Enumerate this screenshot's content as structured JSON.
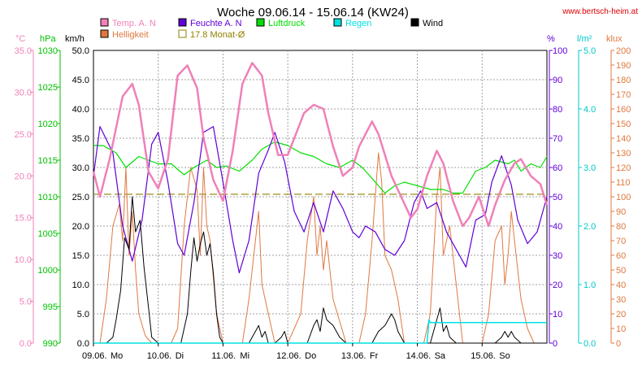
{
  "chart_data": {
    "type": "line",
    "title": "Woche 09.06.14 - 15.06.14 (KW24)",
    "source_label": "www.bertsch-heim.at",
    "x_ticks": [
      "09.06.",
      "Mo",
      "10.06.",
      "Di",
      "11.06.",
      "Mi",
      "12.06.",
      "Do",
      "13.06.",
      "Fr",
      "14.06.",
      "Sa",
      "15.06.",
      "So"
    ],
    "day_ticks": [
      {
        "date": "09.06.",
        "day": "Mo"
      },
      {
        "date": "10.06.",
        "day": "Di"
      },
      {
        "date": "11.06.",
        "day": "Mi"
      },
      {
        "date": "12.06.",
        "day": "Do"
      },
      {
        "date": "13.06.",
        "day": "Fr"
      },
      {
        "date": "14.06.",
        "day": "Sa"
      },
      {
        "date": "15.06.",
        "day": "So"
      }
    ],
    "x_range_days": [
      0,
      7
    ],
    "grid": true,
    "legend": [
      {
        "label": "Temp. A. N",
        "color": "#f080b8"
      },
      {
        "label": "Feuchte A. N",
        "color": "#6000d8"
      },
      {
        "label": "Luftdruck",
        "color": "#00e000"
      },
      {
        "label": "Regen",
        "color": "#00e0e0"
      },
      {
        "label": "Wind",
        "color": "#000000"
      },
      {
        "label": "Helligkeit",
        "color": "#e07840"
      },
      {
        "label": "17.8 Monat-Ø",
        "color": "#908000"
      }
    ],
    "axes": {
      "temp": {
        "unit": "°C",
        "ticks": [
          "35.0",
          "30.0",
          "25.0",
          "20.0",
          "15.0",
          "10.0",
          "5.0",
          "0.0"
        ],
        "range": [
          0,
          35
        ],
        "color": "#f080b8"
      },
      "pressure": {
        "unit": "hPa",
        "ticks": [
          "1030",
          "1025",
          "1020",
          "1015",
          "1010",
          "1005",
          "1000",
          "995",
          "990"
        ],
        "range": [
          990,
          1030
        ],
        "color": "#00c000"
      },
      "wind": {
        "unit": "km/h",
        "ticks": [
          "50.0",
          "45.0",
          "40.0",
          "35.0",
          "30.0",
          "25.0",
          "20.0",
          "15.0",
          "10.0",
          "5.0",
          "0.0"
        ],
        "range": [
          0,
          50
        ],
        "color": "#000000"
      },
      "humidity": {
        "unit": "%",
        "ticks": [
          "100",
          "90",
          "80",
          "70",
          "60",
          "50",
          "40",
          "30",
          "20",
          "10",
          "0"
        ],
        "range": [
          0,
          100
        ],
        "color": "#6000d8"
      },
      "rain": {
        "unit": "l/m²",
        "ticks": [
          "5.0",
          "4.0",
          "3.0",
          "2.0",
          "1.0",
          "0.0"
        ],
        "range": [
          0,
          5
        ],
        "color": "#00c8c8"
      },
      "brightness": {
        "unit": "klux",
        "ticks": [
          "200",
          "190",
          "180",
          "170",
          "160",
          "150",
          "140",
          "130",
          "120",
          "110",
          "100",
          "90",
          "80",
          "70",
          "60",
          "50",
          "40",
          "30",
          "20",
          "10",
          "0"
        ],
        "range": [
          0,
          200
        ],
        "color": "#e07840"
      }
    },
    "monthly_avg_temp": 17.8,
    "series": [
      {
        "name": "Temp. A. N",
        "axis": "temp",
        "color": "#f080b8",
        "x": [
          0.0,
          0.1,
          0.25,
          0.45,
          0.6,
          0.7,
          0.85,
          1.0,
          1.15,
          1.3,
          1.45,
          1.6,
          1.7,
          1.85,
          2.0,
          2.15,
          2.3,
          2.45,
          2.6,
          2.7,
          2.85,
          3.0,
          3.15,
          3.25,
          3.4,
          3.55,
          3.7,
          3.85,
          4.0,
          4.1,
          4.2,
          4.3,
          4.4,
          4.5,
          4.6,
          4.75,
          4.9,
          5.0,
          5.15,
          5.3,
          5.4,
          5.55,
          5.7,
          5.8,
          5.95,
          6.1,
          6.2,
          6.35,
          6.5,
          6.6,
          6.75,
          6.9,
          7.0
        ],
        "y": [
          20.5,
          17.5,
          22.0,
          29.5,
          31.0,
          28.5,
          20.5,
          18.5,
          22.0,
          32.0,
          33.2,
          30.5,
          24.5,
          19.5,
          17.0,
          23.0,
          31.0,
          33.5,
          32.0,
          27.5,
          22.5,
          22.5,
          25.5,
          27.5,
          28.5,
          28.0,
          23.5,
          20.0,
          21.0,
          23.5,
          25.0,
          26.5,
          25.0,
          22.5,
          20.0,
          17.5,
          15.0,
          16.0,
          20.0,
          23.0,
          21.5,
          17.0,
          14.0,
          15.0,
          17.5,
          14.0,
          16.5,
          19.5,
          21.5,
          22.0,
          20.0,
          19.0,
          16.5
        ]
      },
      {
        "name": "Feuchte A. N",
        "axis": "humidity",
        "color": "#6000d8",
        "x": [
          0.0,
          0.1,
          0.3,
          0.45,
          0.6,
          0.75,
          0.9,
          1.0,
          1.15,
          1.3,
          1.4,
          1.55,
          1.7,
          1.85,
          2.0,
          2.15,
          2.25,
          2.4,
          2.55,
          2.7,
          2.8,
          2.95,
          3.1,
          3.25,
          3.4,
          3.55,
          3.7,
          3.85,
          4.0,
          4.1,
          4.2,
          4.35,
          4.5,
          4.65,
          4.8,
          4.95,
          5.05,
          5.15,
          5.3,
          5.45,
          5.6,
          5.75,
          5.9,
          6.05,
          6.15,
          6.3,
          6.45,
          6.55,
          6.7,
          6.85,
          7.0
        ],
        "y": [
          57,
          74,
          65,
          40,
          28,
          42,
          68,
          72,
          55,
          34,
          30,
          48,
          72,
          74,
          55,
          35,
          24,
          35,
          58,
          66,
          72,
          62,
          45,
          38,
          48,
          38,
          52,
          46,
          38,
          36,
          40,
          38,
          32,
          30,
          35,
          48,
          52,
          46,
          48,
          38,
          32,
          26,
          42,
          44,
          55,
          64,
          54,
          42,
          34,
          38,
          50
        ]
      },
      {
        "name": "Luftdruck",
        "axis": "pressure",
        "color": "#00e000",
        "x": [
          0.0,
          0.15,
          0.35,
          0.5,
          0.7,
          0.85,
          1.0,
          1.2,
          1.4,
          1.55,
          1.75,
          1.9,
          2.05,
          2.25,
          2.45,
          2.6,
          2.8,
          3.0,
          3.2,
          3.4,
          3.6,
          3.8,
          4.0,
          4.15,
          4.3,
          4.5,
          4.65,
          4.8,
          5.0,
          5.2,
          5.4,
          5.55,
          5.7,
          5.9,
          6.05,
          6.2,
          6.4,
          6.5,
          6.6,
          6.75,
          6.9,
          7.0
        ],
        "y": [
          1017.0,
          1017.0,
          1016.0,
          1014.0,
          1015.5,
          1015.0,
          1014.5,
          1014.5,
          1013.0,
          1014.0,
          1015.0,
          1014.0,
          1014.2,
          1013.5,
          1015.0,
          1016.5,
          1017.5,
          1017.0,
          1016.0,
          1015.5,
          1014.5,
          1014.0,
          1015.0,
          1014.0,
          1012.5,
          1010.5,
          1011.5,
          1012.0,
          1011.5,
          1011.0,
          1011.0,
          1010.5,
          1010.5,
          1013.5,
          1014.0,
          1015.0,
          1014.5,
          1015.0,
          1013.5,
          1014.5,
          1014.0,
          1015.5
        ]
      },
      {
        "name": "Wind",
        "axis": "wind",
        "color": "#000000",
        "x": [
          0.0,
          0.2,
          0.3,
          0.35,
          0.42,
          0.48,
          0.55,
          0.6,
          0.65,
          0.72,
          0.78,
          0.85,
          0.9,
          1.0,
          1.35,
          1.45,
          1.5,
          1.55,
          1.6,
          1.65,
          1.7,
          1.75,
          1.8,
          1.85,
          1.9,
          1.95,
          2.0,
          2.4,
          2.5,
          2.55,
          2.6,
          2.65,
          2.7,
          2.8,
          2.9,
          2.95,
          3.0,
          3.1,
          3.3,
          3.4,
          3.45,
          3.5,
          3.55,
          3.6,
          3.7,
          3.8,
          3.9,
          4.3,
          4.4,
          4.5,
          4.6,
          4.65,
          4.7,
          4.8,
          5.0,
          5.2,
          5.3,
          5.35,
          5.4,
          5.45,
          5.5,
          5.6,
          5.7,
          5.9,
          6.1,
          6.2,
          6.3,
          6.35,
          6.4,
          6.45,
          6.5,
          6.6,
          7.0
        ],
        "y": [
          0,
          0,
          1,
          4,
          9,
          18,
          16,
          25,
          19,
          21,
          13,
          6,
          1,
          0,
          0,
          5,
          12,
          18,
          14,
          17,
          19,
          15,
          17,
          12,
          5,
          1,
          0,
          0,
          2,
          3,
          1,
          2,
          0,
          0,
          1,
          2,
          0,
          0,
          0,
          3,
          4,
          2,
          6,
          4,
          3,
          1,
          0,
          0,
          2,
          3,
          5,
          4,
          2,
          0,
          0,
          0,
          4,
          6,
          2,
          3,
          1,
          0,
          0,
          0,
          0,
          0,
          1,
          2,
          1,
          2,
          1,
          0,
          0
        ]
      },
      {
        "name": "Helligkeit",
        "axis": "brightness",
        "color": "#e07840",
        "x": [
          0.0,
          0.1,
          0.2,
          0.3,
          0.4,
          0.45,
          0.5,
          0.55,
          0.6,
          0.65,
          0.7,
          0.8,
          0.9,
          1.0,
          1.2,
          1.3,
          1.4,
          1.5,
          1.6,
          1.65,
          1.7,
          1.75,
          1.8,
          1.9,
          2.0,
          2.3,
          2.4,
          2.5,
          2.55,
          2.6,
          2.7,
          2.8,
          2.9,
          3.0,
          3.2,
          3.3,
          3.4,
          3.45,
          3.5,
          3.55,
          3.6,
          3.7,
          3.8,
          3.9,
          4.1,
          4.2,
          4.3,
          4.4,
          4.45,
          4.5,
          4.6,
          4.7,
          4.8,
          4.9,
          5.0,
          5.1,
          5.2,
          5.3,
          5.35,
          5.4,
          5.5,
          5.6,
          5.7,
          6.0,
          6.1,
          6.2,
          6.3,
          6.35,
          6.4,
          6.45,
          6.5,
          6.6,
          6.7,
          6.8,
          7.0
        ],
        "y": [
          0,
          0,
          30,
          80,
          95,
          70,
          120,
          60,
          90,
          50,
          20,
          5,
          0,
          0,
          0,
          10,
          80,
          120,
          105,
          60,
          120,
          80,
          70,
          20,
          0,
          0,
          30,
          70,
          90,
          40,
          20,
          0,
          0,
          0,
          20,
          70,
          100,
          60,
          80,
          50,
          70,
          30,
          15,
          0,
          0,
          20,
          70,
          130,
          110,
          60,
          50,
          30,
          0,
          0,
          0,
          0,
          20,
          100,
          120,
          60,
          80,
          40,
          0,
          0,
          20,
          70,
          80,
          40,
          60,
          90,
          70,
          30,
          10,
          0,
          0
        ]
      },
      {
        "name": "Regen",
        "axis": "rain",
        "color": "#00e0e0",
        "x": [
          0.0,
          5.15,
          5.18,
          5.2,
          7.0
        ],
        "y": [
          0,
          0,
          0.4,
          0.35,
          0.35
        ]
      }
    ]
  }
}
